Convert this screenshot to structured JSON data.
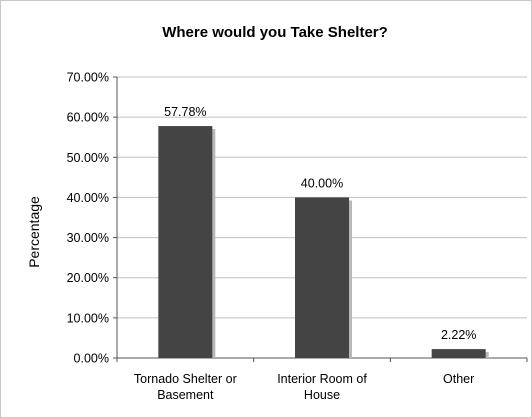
{
  "chart_data": {
    "type": "bar",
    "title": "Where would you Take Shelter?",
    "ylabel": "Percentage",
    "xlabel": "",
    "categories": [
      [
        "Tornado Shelter or",
        "Basement"
      ],
      [
        "Interior Room of",
        "House"
      ],
      [
        "Other"
      ]
    ],
    "values": [
      57.78,
      40.0,
      2.22
    ],
    "data_labels": [
      "57.78%",
      "40.00%",
      "2.22%"
    ],
    "ylim": [
      0,
      70
    ],
    "yticks": [
      0,
      10,
      20,
      30,
      40,
      50,
      60,
      70
    ],
    "ytick_labels": [
      "0.00%",
      "10.00%",
      "20.00%",
      "30.00%",
      "40.00%",
      "50.00%",
      "60.00%",
      "70.00%"
    ],
    "grid": true,
    "bar_color": "#444444",
    "shadow_color": "#b8b8b8",
    "grid_color": "#c0c0c0"
  }
}
